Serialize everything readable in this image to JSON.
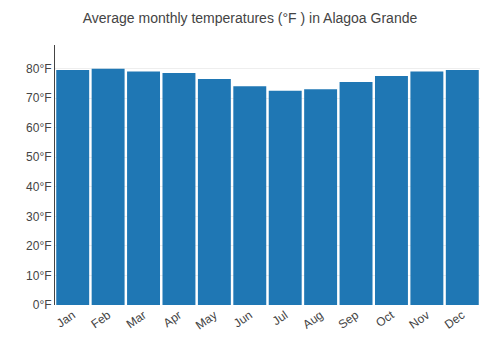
{
  "chart_data": {
    "type": "bar",
    "title": "Average monthly temperatures (°F ) in Alagoa Grande",
    "categories": [
      "Jan",
      "Feb",
      "Mar",
      "Apr",
      "May",
      "Jun",
      "Jul",
      "Aug",
      "Sep",
      "Oct",
      "Nov",
      "Dec"
    ],
    "values": [
      79.5,
      80.0,
      79.0,
      78.5,
      76.5,
      74.0,
      72.5,
      73.0,
      75.5,
      77.5,
      79.0,
      79.5
    ],
    "ylim": [
      0,
      88
    ],
    "yticks": [
      {
        "value": 0,
        "label": "0°F"
      },
      {
        "value": 10,
        "label": "10°F"
      },
      {
        "value": 20,
        "label": "20°F"
      },
      {
        "value": 30,
        "label": "30°F"
      },
      {
        "value": 40,
        "label": "40°F"
      },
      {
        "value": 50,
        "label": "50°F"
      },
      {
        "value": 60,
        "label": "60°F"
      },
      {
        "value": 70,
        "label": "70°F"
      },
      {
        "value": 80,
        "label": "80°F"
      }
    ],
    "grid": true
  }
}
